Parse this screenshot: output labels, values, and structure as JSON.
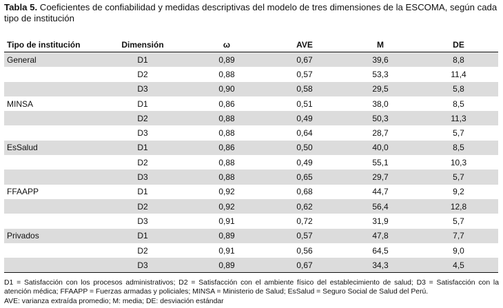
{
  "caption": {
    "label": "Tabla 5.",
    "text": " Coeficientes de confiabilidad y medidas descriptivas del modelo de tres dimensiones de la ESCOMA, según cada tipo de institución"
  },
  "table": {
    "headers": [
      "Tipo de institución",
      "Dimensión",
      "ω",
      "AVE",
      "M",
      "DE"
    ],
    "rows": [
      [
        "General",
        "D1",
        "0,89",
        "0,67",
        "39,6",
        "8,8"
      ],
      [
        "",
        "D2",
        "0,88",
        "0,57",
        "53,3",
        "11,4"
      ],
      [
        "",
        "D3",
        "0,90",
        "0,58",
        "29,5",
        "5,8"
      ],
      [
        "MINSA",
        "D1",
        "0,86",
        "0,51",
        "38,0",
        "8,5"
      ],
      [
        "",
        "D2",
        "0,88",
        "0,49",
        "50,3",
        "11,3"
      ],
      [
        "",
        "D3",
        "0,88",
        "0,64",
        "28,7",
        "5,7"
      ],
      [
        "EsSalud",
        "D1",
        "0,86",
        "0,50",
        "40,0",
        "8,5"
      ],
      [
        "",
        "D2",
        "0,88",
        "0,49",
        "55,1",
        "10,3"
      ],
      [
        "",
        "D3",
        "0,88",
        "0,65",
        "29,7",
        "5,7"
      ],
      [
        "FFAAPP",
        "D1",
        "0,92",
        "0,68",
        "44,7",
        "9,2"
      ],
      [
        "",
        "D2",
        "0,92",
        "0,62",
        "56,4",
        "12,8"
      ],
      [
        "",
        "D3",
        "0,91",
        "0,72",
        "31,9",
        "5,7"
      ],
      [
        "Privados",
        "D1",
        "0,89",
        "0,57",
        "47,8",
        "7,7"
      ],
      [
        "",
        "D2",
        "0,91",
        "0,56",
        "64,5",
        "9,0"
      ],
      [
        "",
        "D3",
        "0,89",
        "0,67",
        "34,3",
        "4,5"
      ]
    ],
    "shaded_rows": [
      0,
      2,
      4,
      6,
      8,
      10,
      12,
      14
    ]
  },
  "notes": [
    "D1 = Satisfacción con los procesos administrativos; D2 = Satisfacción con el ambiente físico del establecimiento de salud; D3 = Satisfacción con la atención médica; FFAAPP = Fuerzas armadas y policiales; MINSA = Ministerio de Salud; EsSalud = Seguro Social de Salud del Perú.",
    "AVE: varianza extraída promedio; M: media; DE: desviación estándar"
  ]
}
